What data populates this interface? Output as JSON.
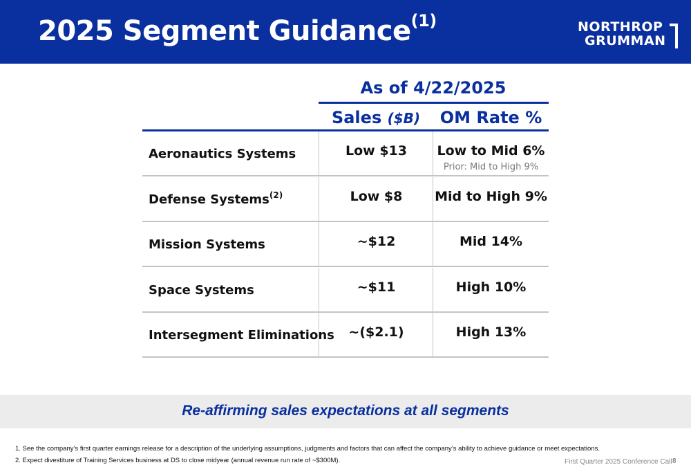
{
  "header": {
    "title": "2025 Segment Guidance",
    "title_footnote_ref": "(1)",
    "logo_line1": "NORTHROP",
    "logo_line2": "GRUMMAN"
  },
  "table": {
    "as_of": "As of 4/22/2025",
    "columns": {
      "sales_label": "Sales",
      "sales_unit": "($B)",
      "om_label": "OM Rate %"
    },
    "rows": [
      {
        "name": "Aeronautics Systems",
        "ref": "",
        "sales": "Low $13",
        "om": "Low to Mid 6%",
        "prior": "Prior: Mid to High 9%"
      },
      {
        "name": "Defense Systems",
        "ref": "(2)",
        "sales": "Low $8",
        "om": "Mid to High 9%",
        "prior": ""
      },
      {
        "name": "Mission Systems",
        "ref": "",
        "sales": "~$12",
        "om": "Mid 14%",
        "prior": ""
      },
      {
        "name": "Space Systems",
        "ref": "",
        "sales": "~$11",
        "om": "High 10%",
        "prior": ""
      },
      {
        "name": "Intersegment Eliminations",
        "ref": "",
        "sales": "~($2.1)",
        "om": "High 13%",
        "prior": ""
      }
    ]
  },
  "banner": {
    "text": "Re-affirming sales expectations at all segments"
  },
  "footnotes": [
    "1.  See the company’s first quarter earnings release for a description of the underlying assumptions, judgments and factors that can affect the company’s ability to achieve guidance or meet expectations.",
    "2.  Expect divestiture of Training Services business at DS to close midyear (annual revenue run rate of ~$300M)."
  ],
  "footer": {
    "call": "First Quarter 2025 Conference Call",
    "page": "8"
  },
  "colors": {
    "brand_blue": "#0a2f9e",
    "banner_gray": "#ececec",
    "rule_gray": "#c4c4c4"
  }
}
